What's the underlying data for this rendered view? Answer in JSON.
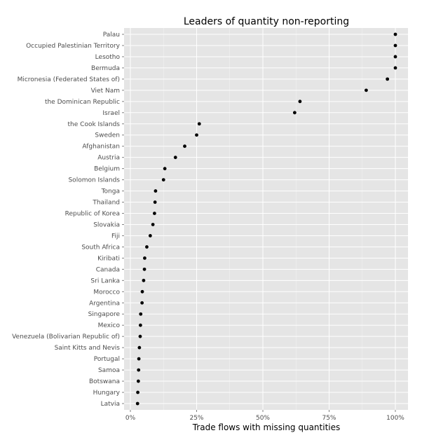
{
  "chart_data": {
    "type": "scatter",
    "title": "Leaders of quantity non-reporting",
    "xlabel": "Trade flows with missing quantities",
    "ylabel": "",
    "xlim": [
      0,
      1
    ],
    "x_ticks": [
      0,
      0.25,
      0.5,
      0.75,
      1.0
    ],
    "x_tick_labels": [
      "0%",
      "25%",
      "50%",
      "75%",
      "100%"
    ],
    "grid": true,
    "background_color": "#e5e5e5",
    "grid_color": "#ffffff",
    "point_color": "#000000",
    "categories": [
      "Palau",
      "Occupied Palestinian Territory",
      "Lesotho",
      "Bermuda",
      "Micronesia (Federated States of)",
      "Viet Nam",
      "the Dominican Republic",
      "Israel",
      "the Cook Islands",
      "Sweden",
      "Afghanistan",
      "Austria",
      "Belgium",
      "Solomon Islands",
      "Tonga",
      "Thailand",
      "Republic of Korea",
      "Slovakia",
      "Fiji",
      "South Africa",
      "Kiribati",
      "Canada",
      "Sri Lanka",
      "Morocco",
      "Argentina",
      "Singapore",
      "Mexico",
      "Venezuela (Bolivarian Republic of)",
      "Saint Kitts and Nevis",
      "Portugal",
      "Samoa",
      "Botswana",
      "Hungary",
      "Latvia"
    ],
    "values": [
      1.0,
      1.0,
      1.0,
      1.0,
      0.97,
      0.89,
      0.64,
      0.62,
      0.26,
      0.25,
      0.205,
      0.17,
      0.13,
      0.125,
      0.095,
      0.093,
      0.091,
      0.085,
      0.075,
      0.062,
      0.054,
      0.053,
      0.05,
      0.045,
      0.044,
      0.039,
      0.038,
      0.037,
      0.034,
      0.032,
      0.031,
      0.03,
      0.028,
      0.027
    ]
  }
}
